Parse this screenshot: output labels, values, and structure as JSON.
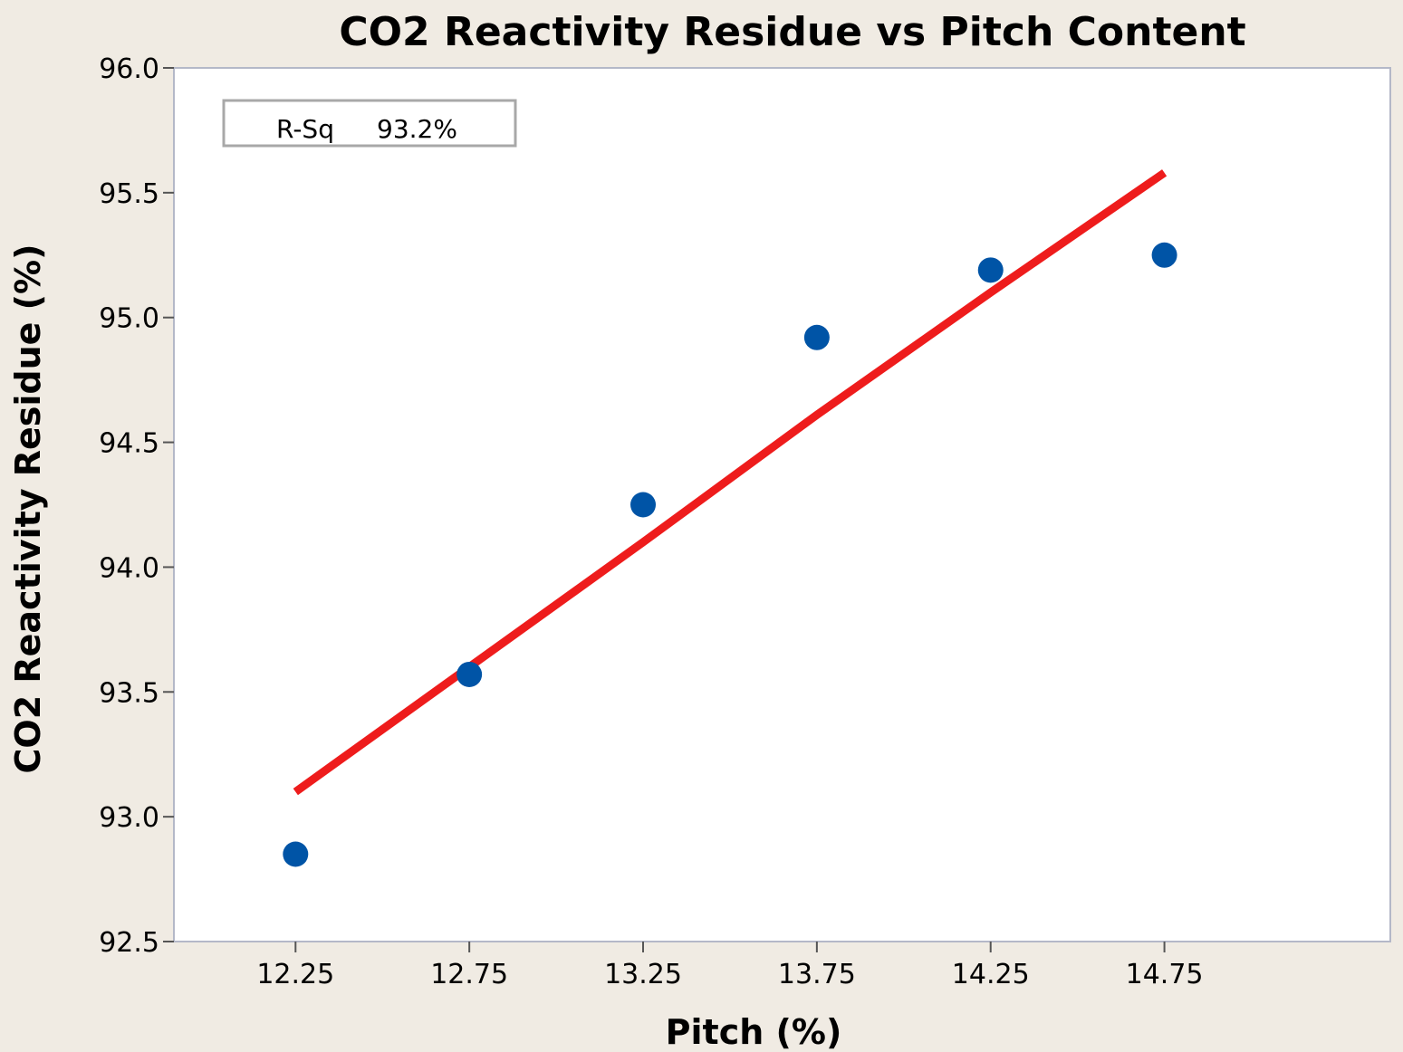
{
  "chart_data": {
    "type": "scatter",
    "title": "CO2  Reactivity Residue vs Pitch Content",
    "xlabel": "Pitch (%)",
    "ylabel": "CO2 Reactivity Residue (%)",
    "xlim": [
      11.9,
      15.4
    ],
    "ylim": [
      92.5,
      96.0
    ],
    "xticks": [
      12.25,
      12.75,
      13.25,
      13.75,
      14.25,
      14.75
    ],
    "xtick_labels": [
      "12.25",
      "12.75",
      "13.25",
      "13.75",
      "14.25",
      "14.75"
    ],
    "yticks": [
      92.5,
      93.0,
      93.5,
      94.0,
      94.5,
      95.0,
      95.5,
      96.0
    ],
    "ytick_labels": [
      "92.5",
      "93.0",
      "93.5",
      "94.0",
      "94.5",
      "95.0",
      "95.5",
      "96.0"
    ],
    "series": [
      {
        "kind": "points",
        "x": [
          12.25,
          12.75,
          13.25,
          13.75,
          14.25,
          14.75
        ],
        "y": [
          92.85,
          93.57,
          94.25,
          94.92,
          95.19,
          95.25
        ],
        "color": "#0054a6"
      },
      {
        "kind": "fit-line",
        "x": [
          12.25,
          12.75,
          13.25,
          13.75,
          14.25,
          14.75
        ],
        "y": [
          93.1,
          93.6,
          94.1,
          94.61,
          95.1,
          95.58
        ],
        "color": "#ee1c1c"
      }
    ],
    "legend": {
      "placement": "top-left",
      "label": "R-Sq",
      "value": "93.2%"
    },
    "grid": false
  }
}
